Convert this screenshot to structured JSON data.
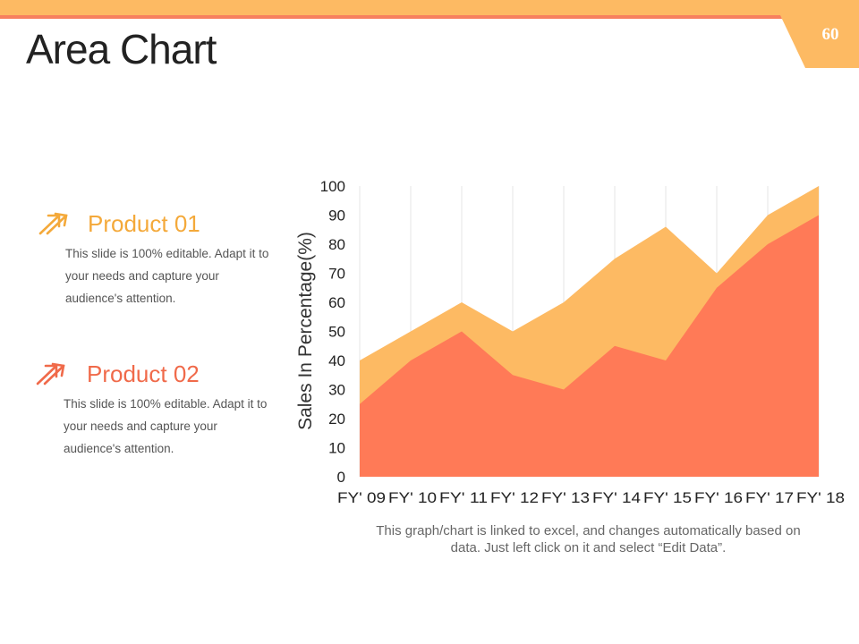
{
  "header": {
    "title": "Area Chart",
    "page_number": "60"
  },
  "products": [
    {
      "name": "Product 01",
      "description": "This slide is 100% editable. Adapt it to your needs and capture your audience's attention.",
      "color": "#F4A93A",
      "icon": "double-arrow-icon"
    },
    {
      "name": "Product 02",
      "description": "This slide is 100% editable. Adapt it to your needs and capture your audience's attention.",
      "color": "#F06A4A",
      "icon": "double-arrow-icon"
    }
  ],
  "chart_data": {
    "type": "area",
    "categories": [
      "FY' 09",
      "FY' 10",
      "FY' 11",
      "FY' 12",
      "FY' 13",
      "FY' 14",
      "FY' 15",
      "FY' 16",
      "FY' 17",
      "FY' 18"
    ],
    "series": [
      {
        "values": [
          40,
          50,
          60,
          50,
          60,
          75,
          86,
          70,
          90,
          100
        ],
        "color": "#FDBA63"
      },
      {
        "values": [
          25,
          40,
          50,
          35,
          30,
          45,
          40,
          65,
          80,
          90
        ],
        "color": "#FF7A57"
      }
    ],
    "ylabel": "Sales In Percentage(%)",
    "xlabel": "",
    "yticks": [
      "0",
      "10",
      "20",
      "30",
      "40",
      "50",
      "60",
      "70",
      "80",
      "90",
      "100"
    ],
    "ylim": [
      0,
      100
    ],
    "grid": "vertical"
  },
  "caption": "This graph/chart is linked to excel, and changes automatically based on data. Just left click on it and select “Edit Data”."
}
